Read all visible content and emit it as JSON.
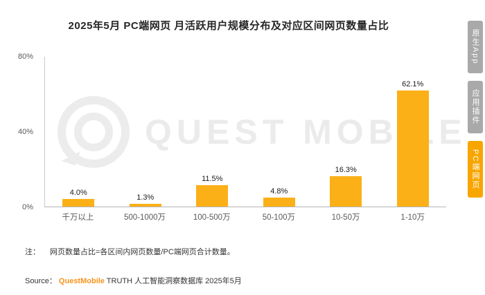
{
  "chart_data": {
    "type": "bar",
    "title": "2025年5月 PC端网页 月活跃用户规模分布及对应区间网页数量占比",
    "categories": [
      "千万以上",
      "500-1000万",
      "100-500万",
      "50-100万",
      "10-50万",
      "1-10万"
    ],
    "values": [
      4.0,
      1.3,
      11.5,
      4.8,
      16.3,
      62.1
    ],
    "value_labels": [
      "4.0%",
      "1.3%",
      "11.5%",
      "4.8%",
      "16.3%",
      "62.1%"
    ],
    "y_ticks": [
      "0%",
      "40%",
      "80%"
    ],
    "ylim": [
      0,
      80
    ],
    "xlabel": "",
    "ylabel": "",
    "grid": false,
    "legend": "none",
    "bar_color": "#fbb017"
  },
  "watermark": {
    "text": "QUEST MOBILE"
  },
  "sidebar": {
    "active_color": "#f7a600",
    "inactive_color": "#a9a9a9",
    "tabs": [
      {
        "label": "原生App",
        "active": false
      },
      {
        "label": "应用插件",
        "active": false
      },
      {
        "label": "PC端网页",
        "active": true
      }
    ]
  },
  "note": {
    "label": "注：",
    "text": "网页数量占比=各区间内网页数量/PC端网页合计数量。"
  },
  "source": {
    "prefix": "Source：",
    "brand": "QuestMobile",
    "suffix": " TRUTH 人工智能洞察数据库 2025年5月"
  }
}
